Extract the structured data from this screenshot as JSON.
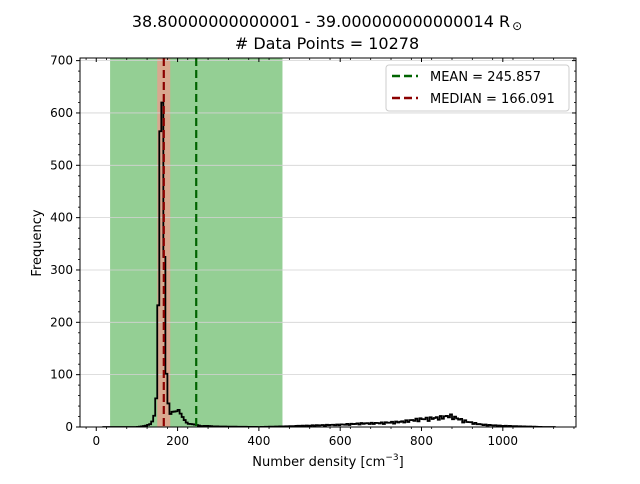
{
  "chart_data": {
    "type": "histogram",
    "title_line1": "38.80000000000001 - 39.000000000000014 R",
    "title_symbol": "⊙",
    "title_line2": "# Data Points = 10278",
    "xlabel_main": "Number density [cm",
    "xlabel_sup": "−3",
    "xlabel_end": "]",
    "ylabel": "Frequency",
    "xlim": [
      -40,
      1180
    ],
    "ylim": [
      0,
      705
    ],
    "xticks": [
      0,
      200,
      400,
      600,
      800,
      1000
    ],
    "yticks": [
      0,
      100,
      200,
      300,
      400,
      500,
      600,
      700
    ],
    "grid_y": true,
    "legend_position": "upper right",
    "legend": {
      "mean_label": "MEAN = 245.857",
      "median_label": "MEDIAN = 166.091"
    },
    "mean": 245.857,
    "median": 166.091,
    "shaded_range_outer": [
      34,
      458
    ],
    "shaded_range_inner": [
      150,
      182
    ],
    "colors": {
      "outer_band": "#94cf94",
      "inner_band": "#d9a88f",
      "mean_line": "#006400",
      "median_line": "#8b0000",
      "histogram": "#000000",
      "grid": "#d3d3d3"
    },
    "histogram": {
      "bin_width": 5,
      "points": [
        [
          15,
          0
        ],
        [
          100,
          0
        ],
        [
          120,
          2
        ],
        [
          135,
          6
        ],
        [
          140,
          15
        ],
        [
          145,
          28
        ],
        [
          148,
          60
        ],
        [
          150,
          110
        ],
        [
          152,
          200
        ],
        [
          154,
          330
        ],
        [
          156,
          460
        ],
        [
          158,
          600
        ],
        [
          160,
          670
        ],
        [
          162,
          640
        ],
        [
          164,
          560
        ],
        [
          166,
          430
        ],
        [
          168,
          290
        ],
        [
          170,
          180
        ],
        [
          172,
          110
        ],
        [
          175,
          60
        ],
        [
          180,
          30
        ],
        [
          185,
          20
        ],
        [
          190,
          38
        ],
        [
          195,
          30
        ],
        [
          200,
          35
        ],
        [
          205,
          25
        ],
        [
          210,
          18
        ],
        [
          220,
          10
        ],
        [
          230,
          6
        ],
        [
          240,
          4
        ],
        [
          260,
          2
        ],
        [
          300,
          1
        ],
        [
          400,
          0
        ],
        [
          450,
          1
        ],
        [
          500,
          2
        ],
        [
          550,
          3
        ],
        [
          600,
          4
        ],
        [
          650,
          6
        ],
        [
          700,
          7
        ],
        [
          750,
          9
        ],
        [
          780,
          12
        ],
        [
          800,
          14
        ],
        [
          820,
          15
        ],
        [
          840,
          16
        ],
        [
          860,
          18
        ],
        [
          870,
          20
        ],
        [
          880,
          17
        ],
        [
          900,
          12
        ],
        [
          920,
          8
        ],
        [
          950,
          4
        ],
        [
          1000,
          2
        ],
        [
          1050,
          1
        ],
        [
          1100,
          0
        ],
        [
          1130,
          0
        ]
      ]
    }
  }
}
